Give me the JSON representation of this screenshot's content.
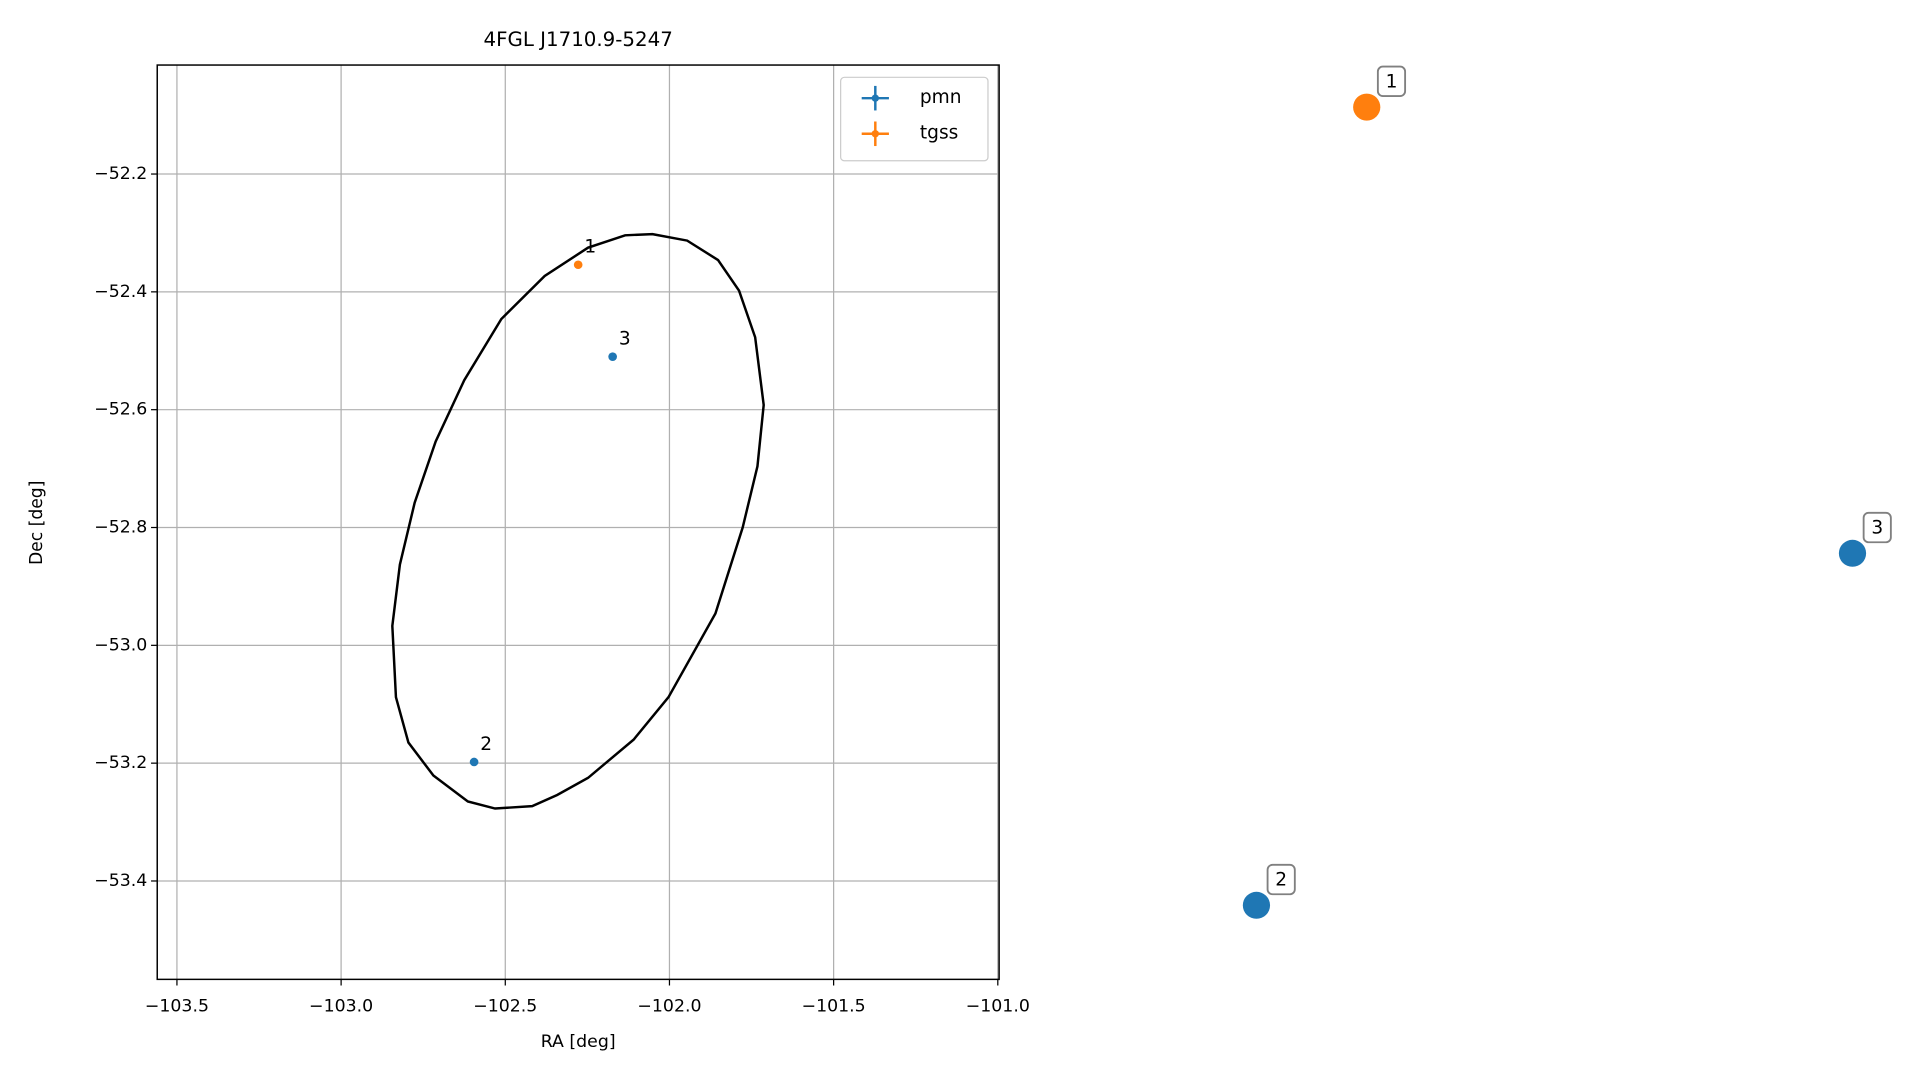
{
  "chart_data": [
    {
      "type": "scatter",
      "title": "4FGL J1710.9-5247",
      "xlabel": "RA [deg]",
      "ylabel": "Dec [deg]",
      "xlim": [
        -103.56,
        -100.996
      ],
      "ylim": [
        -53.567,
        -52.015
      ],
      "xticks": [
        {
          "value": -103.5,
          "label": "−103.5"
        },
        {
          "value": -103.0,
          "label": "−103.0"
        },
        {
          "value": -102.5,
          "label": "−102.5"
        },
        {
          "value": -102.0,
          "label": "−102.0"
        },
        {
          "value": -101.5,
          "label": "−101.5"
        },
        {
          "value": -101.0,
          "label": "−101.0"
        }
      ],
      "yticks": [
        {
          "value": -52.2,
          "label": "−52.2"
        },
        {
          "value": -52.4,
          "label": "−52.4"
        },
        {
          "value": -52.6,
          "label": "−52.6"
        },
        {
          "value": -52.8,
          "label": "−52.8"
        },
        {
          "value": -53.0,
          "label": "−53.0"
        },
        {
          "value": -53.2,
          "label": "−53.2"
        },
        {
          "value": -53.4,
          "label": "−53.4"
        }
      ],
      "grid": true,
      "legend": "upper right",
      "series": [
        {
          "name": "pmn",
          "color": "#1f77b4",
          "x": [
            -102.595,
            -102.173
          ],
          "y": [
            -53.198,
            -52.51
          ],
          "labels": [
            "2",
            "3"
          ]
        },
        {
          "name": "tgss",
          "color": "#ff7f0e",
          "x": [
            -102.278
          ],
          "y": [
            -52.354
          ],
          "labels": [
            "1"
          ]
        }
      ],
      "ellipse": {
        "color": "#000000",
        "x": [
          -102.052,
          -101.946,
          -101.852,
          -101.788,
          -101.739,
          -101.713,
          -101.732,
          -101.777,
          -101.86,
          -102.003,
          -102.109,
          -102.248,
          -102.342,
          -102.418,
          -102.531,
          -102.614,
          -102.719,
          -102.795,
          -102.833,
          -102.844,
          -102.821,
          -102.776,
          -102.712,
          -102.625,
          -102.512,
          -102.38,
          -102.248,
          -102.135
        ],
        "y": [
          -52.302,
          -52.313,
          -52.346,
          -52.398,
          -52.477,
          -52.592,
          -52.696,
          -52.8,
          -52.946,
          -53.088,
          -53.16,
          -53.225,
          -53.254,
          -53.273,
          -53.277,
          -53.265,
          -53.221,
          -53.165,
          -53.088,
          -52.967,
          -52.863,
          -52.758,
          -52.654,
          -52.55,
          -52.446,
          -52.373,
          -52.325,
          -52.304
        ]
      }
    },
    {
      "type": "scatter",
      "xlim": [
        0,
        1
      ],
      "ylim": [
        0,
        1
      ],
      "series": [
        {
          "color": "#1f77b4",
          "x": [
            0.213,
            0.921
          ],
          "y": [
            0.081,
            0.466
          ],
          "labels": [
            "2",
            "3"
          ]
        },
        {
          "color": "#ff7f0e",
          "x": [
            0.344
          ],
          "y": [
            0.954
          ],
          "labels": [
            "1"
          ]
        }
      ]
    }
  ]
}
